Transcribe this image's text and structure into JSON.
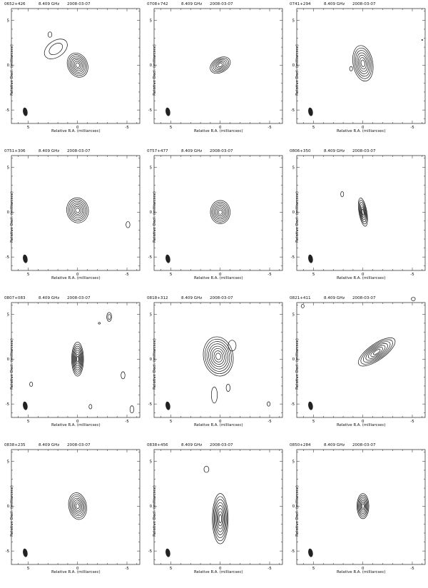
{
  "figure": {
    "xlabel": "Relative R.A. (milliarcsec)",
    "ylabel": "Relative Decl. (milliarcsec)",
    "x_ticks": [
      "5",
      "0",
      "-5"
    ],
    "y_ticks": [
      "5",
      "0",
      "-5"
    ],
    "panels": [
      {
        "source": "0652+426",
        "freq": "8.409 GHz",
        "date": "2008-03-07"
      },
      {
        "source": "0708+742",
        "freq": "8.409 GHz",
        "date": "2008-03-07"
      },
      {
        "source": "0741+294",
        "freq": "8.409 GHz",
        "date": "2008-03-07"
      },
      {
        "source": "0751+306",
        "freq": "8.409 GHz",
        "date": "2008-03-07"
      },
      {
        "source": "0757+477",
        "freq": "8.409 GHz",
        "date": "2008-03-07"
      },
      {
        "source": "0806+350",
        "freq": "8.409 GHz",
        "date": "2008-03-07"
      },
      {
        "source": "0807+083",
        "freq": "8.409 GHz",
        "date": "2008-03-07"
      },
      {
        "source": "0818+312",
        "freq": "8.409 GHz",
        "date": "2008-03-07"
      },
      {
        "source": "0821+411",
        "freq": "8.409 GHz",
        "date": "2008-03-07"
      },
      {
        "source": "0838+235",
        "freq": "8.409 GHz",
        "date": "2008-03-07"
      },
      {
        "source": "0838+456",
        "freq": "8.409 GHz",
        "date": "2008-03-07"
      },
      {
        "source": "0850+284",
        "freq": "8.409 GHz",
        "date": "2008-03-07"
      }
    ]
  }
}
